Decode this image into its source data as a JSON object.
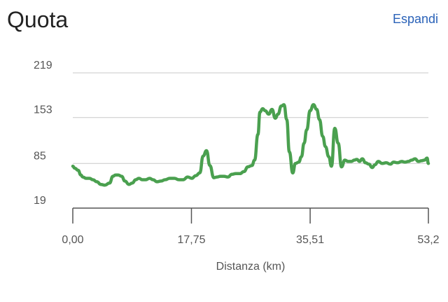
{
  "header": {
    "title": "Quota",
    "expand_label": "Espandi"
  },
  "colors": {
    "line": "#4aa04f",
    "grid": "#c8c8c8",
    "link": "#2a62b8"
  },
  "chart_data": {
    "type": "line",
    "title": "Quota",
    "xlabel": "Distanza (km)",
    "ylabel": "",
    "xlim": [
      0,
      53.2
    ],
    "ylim": [
      19,
      219
    ],
    "yticks": [
      219,
      153,
      85,
      19
    ],
    "ytick_labels": [
      "219",
      "153",
      "85",
      "19"
    ],
    "xticks": [
      0,
      17.75,
      35.51,
      53.2
    ],
    "xtick_labels": [
      "0,00",
      "17,75",
      "35,51",
      "53,2"
    ],
    "grid": true,
    "series": [
      {
        "x": [
          0.0,
          0.3,
          0.8,
          1.2,
          1.5,
          2.0,
          2.5,
          3.0,
          3.6,
          4.2,
          4.8,
          5.5,
          6.0,
          6.4,
          6.8,
          7.3,
          7.8,
          8.4,
          8.9,
          9.4,
          9.9,
          10.4,
          10.9,
          11.5,
          12.0,
          12.6,
          13.2,
          13.8,
          14.5,
          15.2,
          15.9,
          16.5,
          17.2,
          17.8,
          18.4,
          19.0,
          19.5,
          20.0,
          20.5,
          21.1,
          21.6,
          22.1,
          22.6,
          23.2,
          23.8,
          24.4,
          25.0,
          25.6,
          26.2,
          26.8,
          27.2,
          27.7,
          28.0,
          28.4,
          28.8,
          29.3,
          29.8,
          30.3,
          30.7,
          31.2,
          31.6,
          32.0,
          32.4,
          32.9,
          33.3,
          33.8,
          34.2,
          34.6,
          35.0,
          35.5,
          36.0,
          36.5,
          36.9,
          37.4,
          37.8,
          38.3,
          38.7,
          39.2,
          39.7,
          40.2,
          40.7,
          41.2,
          41.7,
          42.1,
          42.5,
          42.9,
          43.3,
          43.8,
          44.3,
          44.8,
          45.2,
          45.7,
          46.3,
          46.9,
          47.5,
          48.0,
          48.6,
          49.2,
          49.7,
          50.2,
          50.7,
          51.2,
          51.7,
          52.2,
          52.6,
          53.0,
          53.2
        ],
        "values": [
          81,
          78,
          75,
          68,
          65,
          63,
          63,
          61,
          58,
          54,
          53,
          56,
          66,
          68,
          68,
          66,
          59,
          54,
          56,
          61,
          63,
          61,
          61,
          63,
          61,
          58,
          59,
          61,
          63,
          63,
          61,
          61,
          65,
          63,
          67,
          71,
          96,
          104,
          82,
          64,
          65,
          66,
          66,
          65,
          69,
          70,
          70,
          73,
          80,
          82,
          90,
          128,
          161,
          166,
          163,
          158,
          165,
          152,
          158,
          170,
          172,
          150,
          102,
          71,
          85,
          87,
          95,
          115,
          135,
          163,
          172,
          165,
          150,
          125,
          110,
          95,
          81,
          137,
          115,
          80,
          90,
          88,
          88,
          90,
          91,
          88,
          92,
          86,
          84,
          79,
          83,
          88,
          85,
          86,
          84,
          87,
          86,
          88,
          87,
          88,
          90,
          92,
          88,
          89,
          90,
          93,
          85
        ]
      }
    ]
  }
}
